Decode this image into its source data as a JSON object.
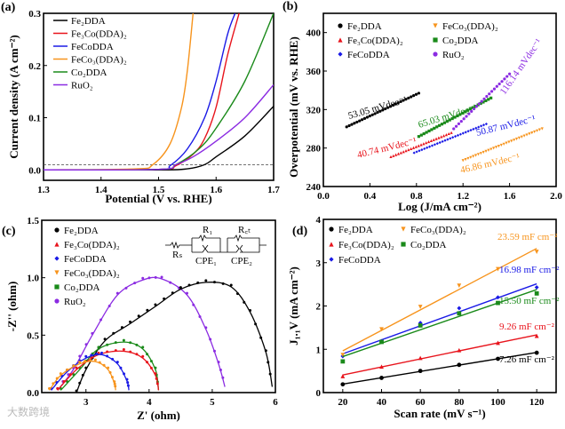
{
  "watermark": "大数跨境",
  "chart_data": [
    {
      "panel": "(a)",
      "type": "line",
      "xlabel": "Potential (V vs. RHE)",
      "ylabel": "Current density (A cm⁻²)",
      "xlim": [
        1.3,
        1.7
      ],
      "ylim": [
        -0.02,
        0.3
      ],
      "xticks": [
        "1.3",
        "1.4",
        "1.5",
        "1.6",
        "1.7"
      ],
      "yticks": [
        "0.0",
        "0.1",
        "0.2",
        "0.3"
      ],
      "reference_line": 0.01,
      "series": [
        {
          "name": "Fe₂DDA",
          "color": "#000000",
          "points": [
            [
              1.3,
              0
            ],
            [
              1.5,
              0
            ],
            [
              1.55,
              0.002
            ],
            [
              1.58,
              0.01
            ],
            [
              1.6,
              0.025
            ],
            [
              1.65,
              0.065
            ],
            [
              1.7,
              0.122
            ]
          ]
        },
        {
          "name": "Fe₃Co(DDA)₂",
          "color": "#e8141c",
          "points": [
            [
              1.3,
              0
            ],
            [
              1.5,
              0.001
            ],
            [
              1.53,
              0.008
            ],
            [
              1.56,
              0.03
            ],
            [
              1.58,
              0.06
            ],
            [
              1.6,
              0.12
            ],
            [
              1.62,
              0.22
            ],
            [
              1.64,
              0.3
            ]
          ]
        },
        {
          "name": "FeCoDDA",
          "color": "#1a1ae6",
          "points": [
            [
              1.3,
              0
            ],
            [
              1.5,
              0.001
            ],
            [
              1.52,
              0.008
            ],
            [
              1.55,
              0.04
            ],
            [
              1.58,
              0.1
            ],
            [
              1.6,
              0.17
            ],
            [
              1.62,
              0.26
            ],
            [
              1.633,
              0.3
            ]
          ]
        },
        {
          "name": "FeCo₃(DDA)₂",
          "color": "#f7941d",
          "points": [
            [
              1.3,
              0
            ],
            [
              1.46,
              0.002
            ],
            [
              1.49,
              0.01
            ],
            [
              1.52,
              0.05
            ],
            [
              1.54,
              0.12
            ],
            [
              1.55,
              0.19
            ],
            [
              1.56,
              0.3
            ]
          ]
        },
        {
          "name": "Co₂DDA",
          "color": "#1a8a1a",
          "points": [
            [
              1.3,
              0
            ],
            [
              1.5,
              0.001
            ],
            [
              1.53,
              0.01
            ],
            [
              1.57,
              0.04
            ],
            [
              1.6,
              0.08
            ],
            [
              1.65,
              0.17
            ],
            [
              1.7,
              0.3
            ]
          ]
        },
        {
          "name": "RuO₂",
          "color": "#8b2be2",
          "points": [
            [
              1.3,
              0
            ],
            [
              1.5,
              0.001
            ],
            [
              1.53,
              0.01
            ],
            [
              1.56,
              0.025
            ],
            [
              1.6,
              0.055
            ],
            [
              1.65,
              0.1
            ],
            [
              1.7,
              0.163
            ]
          ]
        }
      ]
    },
    {
      "panel": "(b)",
      "type": "line",
      "xlabel": "Log (J/mA cm⁻²)",
      "ylabel": "Overpotential (mV vs. RHE)",
      "xlim": [
        0,
        2
      ],
      "ylim": [
        240,
        420
      ],
      "xticks": [
        "0.0",
        "0.4",
        "0.8",
        "1.2",
        "1.6",
        "2.0"
      ],
      "yticks": [
        "240",
        "280",
        "320",
        "360",
        "400"
      ],
      "series": [
        {
          "name": "Fe₂DDA",
          "color": "#000000",
          "marker": "circle",
          "points": [
            [
              0.2,
              302
            ],
            [
              0.82,
              337
            ]
          ],
          "tafel": "53.05 mVdec⁻¹"
        },
        {
          "name": "Fe₃Co(DDA)₂",
          "color": "#e8141c",
          "marker": "triangle",
          "points": [
            [
              0.58,
              271
            ],
            [
              1.1,
              296
            ]
          ],
          "tafel": "40.74 mVdec⁻¹"
        },
        {
          "name": "FeCoDDA",
          "color": "#1a1ae6",
          "marker": "diamond",
          "points": [
            [
              0.78,
              275
            ],
            [
              1.4,
              305
            ]
          ],
          "tafel": "50.87 mVdec⁻¹"
        },
        {
          "name": "FeCo₃(DDA)₂",
          "color": "#f7941d",
          "marker": "triangle-down",
          "points": [
            [
              1.2,
              267
            ],
            [
              1.88,
              300
            ]
          ],
          "tafel": "46.86 mVdec⁻¹"
        },
        {
          "name": "Co₂DDA",
          "color": "#1a8a1a",
          "marker": "square",
          "points": [
            [
              0.82,
              292
            ],
            [
              1.44,
              332
            ]
          ],
          "tafel": "65.03 mVdec⁻¹"
        },
        {
          "name": "RuO₂",
          "color": "#8b2be2",
          "marker": "circle",
          "points": [
            [
              1.12,
              300
            ],
            [
              1.6,
              357
            ]
          ],
          "tafel": "116.14 mVdec⁻¹"
        }
      ]
    },
    {
      "panel": "(c)",
      "type": "scatter",
      "xlabel": "Z' (ohm)",
      "ylabel": "-Z'' (ohm)",
      "xlim": [
        2.3,
        6
      ],
      "ylim": [
        0,
        1.5
      ],
      "xticks": [
        "3",
        "4",
        "5",
        "6"
      ],
      "yticks": [
        "0.0",
        "0.5",
        "1.0",
        "1.5"
      ],
      "circuit": {
        "rs": "Rₛ",
        "r1": "R₁",
        "rct": "R꜀ₜ",
        "cpe1": "CPE₁",
        "cpe2": "CPE₂"
      },
      "series": [
        {
          "name": "Fe₂DDA",
          "color": "#000000",
          "points": [
            [
              2.85,
              0
            ],
            [
              3.0,
              0.2
            ],
            [
              3.3,
              0.45
            ],
            [
              3.7,
              0.6
            ],
            [
              4.1,
              0.75
            ],
            [
              4.5,
              0.9
            ],
            [
              4.9,
              0.96
            ],
            [
              5.3,
              0.92
            ],
            [
              5.6,
              0.7
            ],
            [
              5.85,
              0.35
            ],
            [
              5.95,
              0.05
            ]
          ]
        },
        {
          "name": "Fe₃Co(DDA)₂",
          "color": "#e8141c",
          "points": [
            [
              2.55,
              0.02
            ],
            [
              2.85,
              0.2
            ],
            [
              3.2,
              0.33
            ],
            [
              3.6,
              0.36
            ],
            [
              3.9,
              0.3
            ],
            [
              4.1,
              0.15
            ],
            [
              4.15,
              0.02
            ]
          ]
        },
        {
          "name": "FeCoDDA",
          "color": "#1a1ae6",
          "points": [
            [
              2.45,
              0.02
            ],
            [
              2.7,
              0.18
            ],
            [
              3.0,
              0.3
            ],
            [
              3.25,
              0.33
            ],
            [
              3.5,
              0.25
            ],
            [
              3.65,
              0.1
            ],
            [
              3.68,
              0.02
            ]
          ]
        },
        {
          "name": "FeCo₃(DDA)₂",
          "color": "#f7941d",
          "points": [
            [
              2.42,
              0.02
            ],
            [
              2.6,
              0.15
            ],
            [
              2.9,
              0.25
            ],
            [
              3.15,
              0.27
            ],
            [
              3.35,
              0.2
            ],
            [
              3.45,
              0.08
            ],
            [
              3.47,
              0.02
            ]
          ]
        },
        {
          "name": "Co₂DDA",
          "color": "#1a8a1a",
          "points": [
            [
              2.6,
              0.02
            ],
            [
              2.9,
              0.2
            ],
            [
              3.2,
              0.38
            ],
            [
              3.6,
              0.44
            ],
            [
              3.9,
              0.38
            ],
            [
              4.1,
              0.2
            ],
            [
              4.15,
              0.02
            ]
          ]
        },
        {
          "name": "RuO₂",
          "color": "#8b2be2",
          "points": [
            [
              2.55,
              0.02
            ],
            [
              2.8,
              0.2
            ],
            [
              3.1,
              0.5
            ],
            [
              3.5,
              0.85
            ],
            [
              3.9,
              0.98
            ],
            [
              4.2,
              0.99
            ],
            [
              4.6,
              0.85
            ],
            [
              4.9,
              0.55
            ],
            [
              5.1,
              0.25
            ],
            [
              5.2,
              0.05
            ]
          ]
        }
      ]
    },
    {
      "panel": "(d)",
      "type": "scatter",
      "xlabel": "Scan rate (mV s⁻¹)",
      "ylabel": "J₁.₁V (mA cm⁻²)",
      "xlim": [
        10,
        130
      ],
      "ylim": [
        0,
        4
      ],
      "xticks": [
        "20",
        "40",
        "60",
        "80",
        "100",
        "120"
      ],
      "yticks": [
        "0",
        "1",
        "2",
        "3",
        "4"
      ],
      "x": [
        20,
        40,
        60,
        80,
        100,
        120
      ],
      "series": [
        {
          "name": "Fe₂DDA",
          "color": "#000000",
          "marker": "circle",
          "values": [
            0.19,
            0.34,
            0.5,
            0.64,
            0.78,
            0.92
          ],
          "cdl": "7.26 mF cm⁻²"
        },
        {
          "name": "Fe₃Co(DDA)₂",
          "color": "#e8141c",
          "marker": "triangle",
          "values": [
            0.38,
            0.6,
            0.8,
            0.98,
            1.15,
            1.31
          ],
          "cdl": "9.26 mF cm⁻²"
        },
        {
          "name": "FeCoDDA",
          "color": "#1a1ae6",
          "marker": "diamond",
          "values": [
            0.84,
            1.19,
            1.61,
            1.95,
            2.2,
            2.43
          ],
          "cdl": "16.98 mF cm⁻²"
        },
        {
          "name": "FeCo₃(DDA)₂",
          "color": "#f7941d",
          "marker": "triangle-down",
          "values": [
            0.87,
            1.46,
            1.98,
            2.47,
            2.85,
            3.25
          ],
          "cdl": "23.59 mF cm⁻²"
        },
        {
          "name": "Co₂DDA",
          "color": "#1a8a1a",
          "marker": "square",
          "values": [
            0.72,
            1.17,
            1.55,
            1.83,
            2.07,
            2.29
          ],
          "cdl": "15.50 mF cm⁻²"
        }
      ]
    }
  ]
}
